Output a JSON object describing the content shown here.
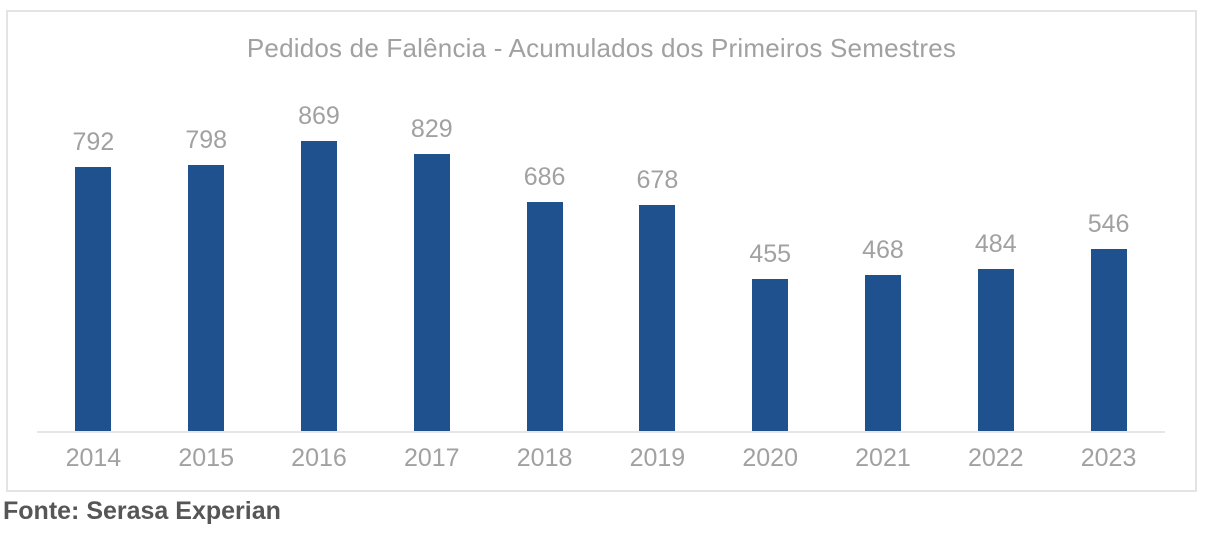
{
  "chart_data": {
    "type": "bar",
    "title": "Pedidos de Falência - Acumulados dos Primeiros Semestres",
    "categories": [
      "2014",
      "2015",
      "2016",
      "2017",
      "2018",
      "2019",
      "2020",
      "2021",
      "2022",
      "2023"
    ],
    "values": [
      792,
      798,
      869,
      829,
      686,
      678,
      455,
      468,
      484,
      546
    ],
    "xlabel": "",
    "ylabel": "",
    "ylim": [
      0,
      900
    ],
    "grid": false,
    "legend": false,
    "data_labels": "above bars",
    "colors": {
      "bar": "#1F518F",
      "title_text": "#A1A1A1",
      "label_text": "#A1A1A1",
      "axis_line": "#E6E6E6",
      "frame_border": "#E4E4E4"
    }
  },
  "source_note": "Fonte: Serasa Experian"
}
